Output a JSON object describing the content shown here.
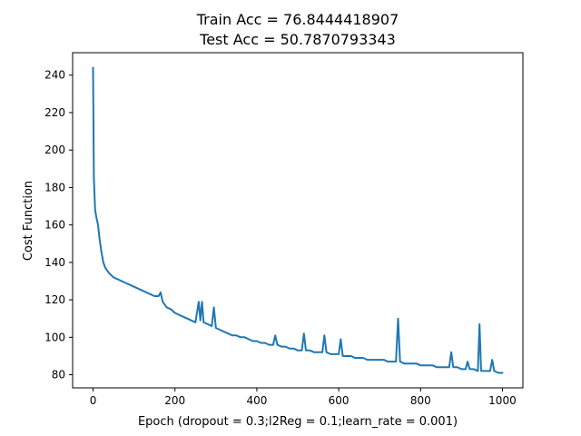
{
  "chart_data": {
    "type": "line",
    "title": [
      "Train Acc = 76.8444418907",
      "Test Acc = 50.7870793343"
    ],
    "xlabel": "Epoch (dropout = 0.3;l2Reg = 0.1;learn_rate = 0.001)",
    "ylabel": "Cost Function",
    "xlim": [
      -50,
      1050
    ],
    "ylim": [
      73,
      252
    ],
    "xticks": [
      0,
      200,
      400,
      600,
      800,
      1000
    ],
    "yticks": [
      80,
      100,
      120,
      140,
      160,
      180,
      200,
      220,
      240
    ],
    "grid": false,
    "series": [
      {
        "color": "#1f77b4",
        "x": [
          0,
          2,
          5,
          8,
          12,
          16,
          20,
          25,
          30,
          40,
          50,
          60,
          70,
          80,
          90,
          100,
          110,
          120,
          130,
          140,
          150,
          160,
          165,
          170,
          180,
          190,
          200,
          210,
          220,
          230,
          240,
          250,
          258,
          262,
          266,
          270,
          280,
          290,
          295,
          300,
          310,
          320,
          330,
          340,
          350,
          360,
          370,
          380,
          390,
          400,
          410,
          420,
          430,
          440,
          445,
          450,
          460,
          470,
          480,
          490,
          500,
          510,
          515,
          520,
          530,
          540,
          550,
          560,
          565,
          570,
          580,
          590,
          600,
          605,
          610,
          620,
          630,
          640,
          650,
          660,
          670,
          680,
          690,
          700,
          710,
          720,
          730,
          740,
          745,
          750,
          760,
          770,
          780,
          790,
          800,
          810,
          820,
          830,
          840,
          850,
          860,
          870,
          875,
          880,
          890,
          900,
          910,
          915,
          920,
          930,
          940,
          944,
          948,
          960,
          970,
          975,
          980,
          990,
          1000
        ],
        "y": [
          244,
          185,
          168,
          164,
          160,
          152,
          146,
          140,
          137,
          134,
          132,
          131,
          130,
          129,
          128,
          127,
          126,
          125,
          124,
          123,
          122,
          122,
          124,
          119,
          116,
          115,
          113,
          112,
          111,
          110,
          109,
          108,
          119,
          109,
          119,
          108,
          107,
          106,
          116,
          105,
          104,
          103,
          102,
          101,
          101,
          100,
          100,
          99,
          98,
          98,
          97,
          97,
          96,
          96,
          101,
          96,
          95,
          95,
          94,
          94,
          93,
          93,
          102,
          93,
          93,
          92,
          92,
          92,
          101,
          92,
          91,
          91,
          91,
          99,
          90,
          90,
          90,
          89,
          89,
          89,
          88,
          88,
          88,
          88,
          88,
          87,
          87,
          87,
          110,
          87,
          86,
          86,
          86,
          86,
          85,
          85,
          85,
          85,
          84,
          84,
          84,
          84,
          92,
          84,
          84,
          83,
          83,
          87,
          83,
          83,
          82,
          107,
          82,
          82,
          82,
          88,
          82,
          81,
          81
        ]
      }
    ]
  }
}
